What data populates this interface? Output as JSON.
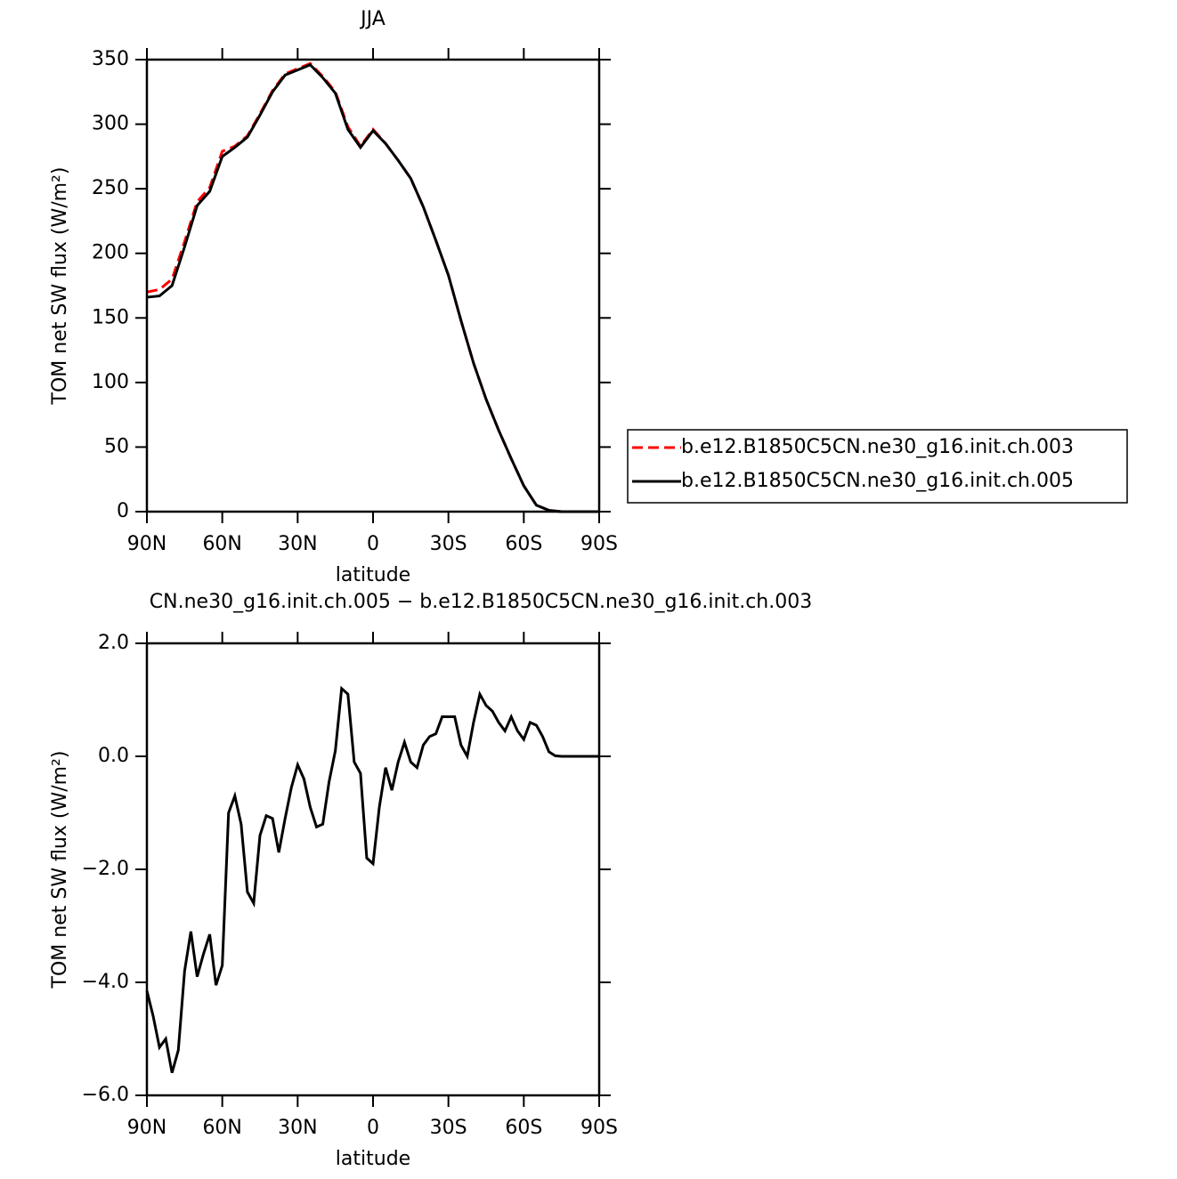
{
  "chart_data": [
    {
      "type": "line",
      "title": "JJA",
      "x_label": "latitude",
      "y_label": "TOM net SW flux (W/m²)",
      "x": [
        90,
        85,
        80,
        75,
        70,
        65,
        60,
        55,
        50,
        45,
        40,
        35,
        30,
        25,
        20,
        15,
        10,
        5,
        0,
        -5,
        -10,
        -15,
        -20,
        -25,
        -30,
        -35,
        -40,
        -45,
        -50,
        -55,
        -60,
        -65,
        -70,
        -75,
        -80,
        -85,
        -90
      ],
      "series": [
        {
          "name": "b.e12.B1850C5CN.ne30_g16.init.ch.003",
          "color": "#ff0000",
          "dash": true,
          "values": [
            170,
            172,
            180,
            209,
            240,
            251,
            279,
            283,
            291,
            308,
            326,
            339,
            343,
            347,
            337,
            325,
            298,
            283,
            296,
            285,
            272,
            258,
            236,
            210,
            183,
            148,
            115,
            87,
            63,
            41,
            20,
            5,
            1,
            0,
            0,
            0,
            0
          ]
        },
        {
          "name": "b.e12.B1850C5CN.ne30_g16.init.ch.005",
          "color": "#000000",
          "dash": false,
          "values": [
            166,
            167,
            175,
            205,
            237,
            248,
            275,
            282,
            290,
            307,
            325,
            338,
            342,
            346,
            336,
            324,
            296,
            282,
            295,
            285,
            272,
            258,
            236,
            210,
            183,
            148,
            115,
            87,
            63,
            41,
            20,
            5,
            1,
            0,
            0,
            0,
            0
          ]
        }
      ],
      "xlim": [
        90,
        -90
      ],
      "xticks": [
        {
          "value": 90,
          "label": "90N"
        },
        {
          "value": 60,
          "label": "60N"
        },
        {
          "value": 30,
          "label": "30N"
        },
        0,
        {
          "value": -30,
          "label": "30S"
        },
        {
          "value": -60,
          "label": "60S"
        },
        {
          "value": -90,
          "label": "90S"
        }
      ],
      "ylim": [
        0,
        350
      ],
      "yticks": [
        0,
        50,
        100,
        150,
        200,
        250,
        300,
        350
      ],
      "legend": "right"
    },
    {
      "type": "line",
      "title": "CN.ne30_g16.init.ch.005 − b.e12.B1850C5CN.ne30_g16.init.ch.003",
      "x_label": "latitude",
      "y_label": "TOM net SW flux (W/m²)",
      "x": [
        90,
        87.5,
        85,
        82.5,
        80,
        77.5,
        75,
        72.5,
        70,
        67.5,
        65,
        62.5,
        60,
        57.5,
        55,
        52.5,
        50,
        47.5,
        45,
        42.5,
        40,
        37.5,
        35,
        32.5,
        30,
        27.5,
        25,
        22.5,
        20,
        17.5,
        15,
        12.5,
        10,
        7.5,
        5,
        2.5,
        0,
        -2.5,
        -5,
        -7.5,
        -10,
        -12.5,
        -15,
        -17.5,
        -20,
        -22.5,
        -25,
        -27.5,
        -30,
        -32.5,
        -35,
        -37.5,
        -40,
        -42.5,
        -45,
        -47.5,
        -50,
        -52.5,
        -55,
        -57.5,
        -60,
        -62.5,
        -65,
        -67.5,
        -70,
        -72.5,
        -75,
        -77.5,
        -80,
        -82.5,
        -85,
        -87.5,
        -90
      ],
      "series": [
        {
          "color": "#000000",
          "dash": false,
          "values": [
            -4.15,
            -4.6,
            -5.15,
            -5.0,
            -5.6,
            -5.2,
            -3.8,
            -3.1,
            -3.9,
            -3.5,
            -3.15,
            -4.05,
            -3.7,
            -1.0,
            -0.7,
            -1.2,
            -2.4,
            -2.6,
            -1.4,
            -1.05,
            -1.1,
            -1.7,
            -1.1,
            -0.55,
            -0.15,
            -0.4,
            -0.9,
            -1.25,
            -1.2,
            -0.45,
            0.1,
            1.2,
            1.1,
            -0.1,
            -0.3,
            -1.8,
            -1.9,
            -0.9,
            -0.2,
            -0.6,
            -0.1,
            0.25,
            -0.1,
            -0.2,
            0.2,
            0.35,
            0.4,
            0.7,
            0.7,
            0.7,
            0.2,
            0.0,
            0.6,
            1.1,
            0.9,
            0.8,
            0.6,
            0.45,
            0.7,
            0.45,
            0.3,
            0.6,
            0.55,
            0.35,
            0.08,
            0.01,
            0,
            0,
            0,
            0,
            0,
            0,
            0
          ]
        }
      ],
      "xlim": [
        90,
        -90
      ],
      "xticks": [
        {
          "value": 90,
          "label": "90N"
        },
        {
          "value": 60,
          "label": "60N"
        },
        {
          "value": 30,
          "label": "30N"
        },
        0,
        {
          "value": -30,
          "label": "30S"
        },
        {
          "value": -60,
          "label": "60S"
        },
        {
          "value": -90,
          "label": "90S"
        }
      ],
      "ylim": [
        -6,
        2
      ],
      "yticks": [
        {
          "value": -6,
          "label": "−6.0"
        },
        {
          "value": -4,
          "label": "−4.0"
        },
        {
          "value": -2,
          "label": "−2.0"
        },
        {
          "value": 0,
          "label": "0.0"
        },
        {
          "value": 2,
          "label": "2.0"
        }
      ]
    }
  ]
}
